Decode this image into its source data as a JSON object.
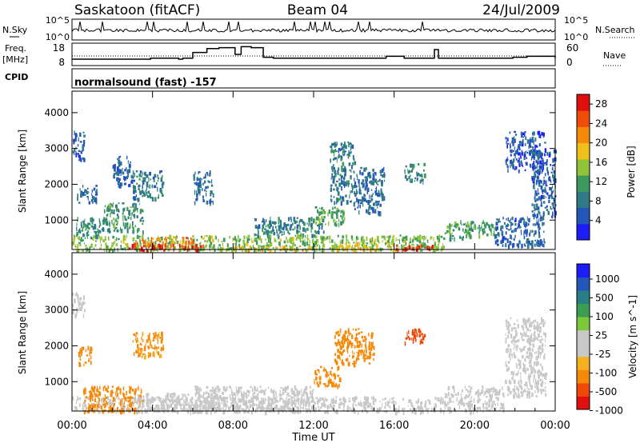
{
  "header": {
    "station": "Saskatoon (fitACF)",
    "beam": "Beam 04",
    "date": "24/Jul/2009"
  },
  "panels": {
    "nsky_label": "N.Sky",
    "nsearch_label": "N.Search",
    "nsky_ticks": [
      "10^5",
      "10^0"
    ],
    "freq_label_1": "Freq.",
    "freq_label_2": "[MHz]",
    "freq_ticks": [
      "18",
      "8"
    ],
    "nave_ticks": [
      "60",
      "0"
    ],
    "nave_label": "Nave",
    "cpid_label": "CPID",
    "cpid_text": "normalsound (fast) -157"
  },
  "colors": {
    "power": [
      "#1d1dfa",
      "#2456b8",
      "#2f7a86",
      "#3d9a5f",
      "#8fc43a",
      "#f0c01a",
      "#f58a0a",
      "#ee4d08",
      "#e01010"
    ],
    "velocity": [
      "#e01010",
      "#f04808",
      "#f58a0a",
      "#f5b020",
      "#c8c8c8",
      "#c8c8c8",
      "#7dc83a",
      "#3c9e52",
      "#2a7e86",
      "#2456b8",
      "#1d1dfa"
    ]
  },
  "chart_data": [
    {
      "type": "heatmap",
      "name": "Power",
      "xlabel": "",
      "ylabel": "Slant Range [km]",
      "x_range_hours_ut": [
        0,
        24
      ],
      "ylim": [
        180,
        4600
      ],
      "y_ticks": [
        1000,
        2000,
        3000,
        4000
      ],
      "colorbar_label": "Power [dB]",
      "colorbar_ticks": [
        4,
        8,
        12,
        16,
        20,
        24,
        28
      ],
      "colorbar_range": [
        0,
        30
      ],
      "regions": [
        {
          "t0": 0.0,
          "t1": 18.5,
          "r0": 180,
          "r1": 600,
          "v": 14
        },
        {
          "t0": 2.8,
          "t1": 6.5,
          "r0": 180,
          "r1": 350,
          "v": 28
        },
        {
          "t0": 3.0,
          "t1": 6.0,
          "r0": 350,
          "r1": 550,
          "v": 22
        },
        {
          "t0": 16.0,
          "t1": 18.0,
          "r0": 180,
          "r1": 320,
          "v": 27
        },
        {
          "t0": 13.0,
          "t1": 16.0,
          "r0": 180,
          "r1": 400,
          "v": 18
        },
        {
          "t0": 7.0,
          "t1": 12.0,
          "r0": 180,
          "r1": 300,
          "v": 18
        },
        {
          "t0": 0.2,
          "t1": 1.5,
          "r0": 500,
          "r1": 1100,
          "v": 10
        },
        {
          "t0": 0.0,
          "t1": 0.6,
          "r0": 2700,
          "r1": 3500,
          "v": 6
        },
        {
          "t0": 0.2,
          "t1": 1.2,
          "r0": 1500,
          "r1": 2000,
          "v": 7
        },
        {
          "t0": 1.5,
          "t1": 3.5,
          "r0": 700,
          "r1": 1500,
          "v": 11
        },
        {
          "t0": 2.0,
          "t1": 3.0,
          "r0": 2000,
          "r1": 2800,
          "v": 6
        },
        {
          "t0": 3.0,
          "t1": 4.5,
          "r0": 1600,
          "r1": 2400,
          "v": 8
        },
        {
          "t0": 6.0,
          "t1": 7.0,
          "r0": 1500,
          "r1": 2400,
          "v": 7
        },
        {
          "t0": 9.0,
          "t1": 12.5,
          "r0": 600,
          "r1": 1100,
          "v": 9
        },
        {
          "t0": 12.0,
          "t1": 13.5,
          "r0": 900,
          "r1": 1400,
          "v": 12
        },
        {
          "t0": 12.8,
          "t1": 14.0,
          "r0": 1500,
          "r1": 3200,
          "v": 8
        },
        {
          "t0": 14.0,
          "t1": 15.5,
          "r0": 1200,
          "r1": 2500,
          "v": 7
        },
        {
          "t0": 16.5,
          "t1": 17.5,
          "r0": 2100,
          "r1": 2600,
          "v": 9
        },
        {
          "t0": 18.5,
          "t1": 21.0,
          "r0": 500,
          "r1": 1000,
          "v": 12
        },
        {
          "t0": 21.0,
          "t1": 23.5,
          "r0": 300,
          "r1": 1100,
          "v": 6
        },
        {
          "t0": 21.5,
          "t1": 23.5,
          "r0": 2400,
          "r1": 3500,
          "v": 5
        },
        {
          "t0": 22.8,
          "t1": 24.0,
          "r0": 1100,
          "r1": 3000,
          "v": 6
        }
      ]
    },
    {
      "type": "heatmap",
      "name": "Velocity",
      "xlabel": "Time UT",
      "ylabel": "Slant Range [km]",
      "x_range_hours_ut": [
        0,
        24
      ],
      "ylim": [
        180,
        4600
      ],
      "y_ticks": [
        1000,
        2000,
        3000,
        4000
      ],
      "x_ticks": [
        "00:00",
        "04:00",
        "08:00",
        "12:00",
        "16:00",
        "20:00",
        "00:00"
      ],
      "colorbar_label": "Velocity [m s^-1]",
      "colorbar_ticks": [
        "1000",
        "500",
        "100",
        "25",
        "-25",
        "-100",
        "-500",
        "-1000"
      ],
      "regions": [
        {
          "t0": 0.0,
          "t1": 18.5,
          "r0": 180,
          "r1": 600,
          "v": 0
        },
        {
          "t0": 0.5,
          "t1": 3.5,
          "r0": 180,
          "r1": 900,
          "v": -150
        },
        {
          "t0": 3.0,
          "t1": 6.5,
          "r0": 180,
          "r1": 700,
          "v": -10
        },
        {
          "t0": 6.0,
          "t1": 12.0,
          "r0": 180,
          "r1": 900,
          "v": 10
        },
        {
          "t0": 12.0,
          "t1": 13.3,
          "r0": 900,
          "r1": 1450,
          "v": -250
        },
        {
          "t0": 13.0,
          "t1": 15.0,
          "r0": 1500,
          "r1": 2500,
          "v": -150
        },
        {
          "t0": 16.5,
          "t1": 17.5,
          "r0": 2100,
          "r1": 2500,
          "v": -800
        },
        {
          "t0": 0.2,
          "t1": 1.0,
          "r0": 1500,
          "r1": 2000,
          "v": -200
        },
        {
          "t0": 0.0,
          "t1": 0.6,
          "r0": 2800,
          "r1": 3500,
          "v": 20
        },
        {
          "t0": 3.0,
          "t1": 4.5,
          "r0": 1700,
          "r1": 2400,
          "v": -120
        },
        {
          "t0": 18.5,
          "t1": 21.5,
          "r0": 180,
          "r1": 900,
          "v": 15
        },
        {
          "t0": 21.5,
          "t1": 23.5,
          "r0": 600,
          "r1": 2800,
          "v": 10
        }
      ]
    },
    {
      "type": "line",
      "name": "Frequency",
      "ylabel": "Freq. [MHz]",
      "ylim": [
        8,
        18
      ],
      "x": [
        0,
        3.2,
        3.9,
        5.3,
        5.5,
        6.0,
        6.7,
        7.3,
        8.1,
        8.4,
        8.9,
        9.5,
        10.0,
        15.1,
        15.6,
        16.5,
        18.0,
        18.2,
        18.5,
        21.9,
        22.6,
        24
      ],
      "y": [
        10.5,
        10.5,
        11,
        10.5,
        11,
        14,
        16,
        16.5,
        13,
        17,
        16.5,
        11.5,
        11,
        11,
        12,
        11,
        15.5,
        11,
        11,
        11.5,
        12,
        11
      ]
    }
  ]
}
